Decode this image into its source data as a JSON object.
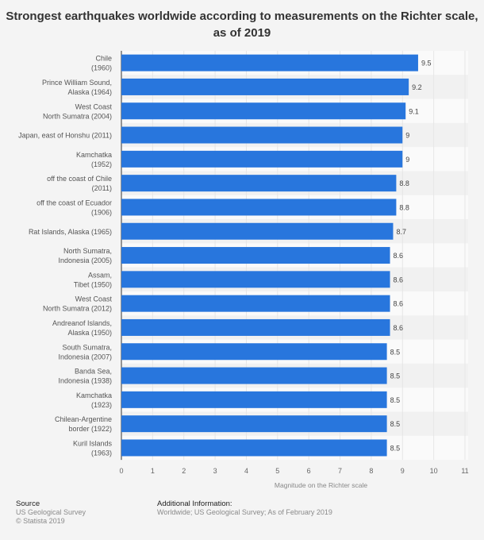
{
  "chart_data": {
    "type": "bar",
    "orientation": "horizontal",
    "title": "Strongest earthquakes worldwide according to measurements on the Richter scale, as of 2019",
    "title_lines": [
      "Strongest earthquakes worldwide according to measurements on the Richter scale,",
      "as of 2019"
    ],
    "categories": [
      [
        "Chile",
        "(1960)"
      ],
      [
        "Prince William Sound,",
        "Alaska (1964)"
      ],
      [
        "West Coast",
        "North Sumatra (2004)"
      ],
      [
        "Japan, east of Honshu (2011)"
      ],
      [
        "Kamchatka",
        "(1952)"
      ],
      [
        "off the coast of Chile",
        "(2011)"
      ],
      [
        "off the coast of Ecuador",
        "(1906)"
      ],
      [
        "Rat Islands, Alaska (1965)"
      ],
      [
        "North Sumatra,",
        "Indonesia (2005)"
      ],
      [
        "Assam,",
        "Tibet (1950)"
      ],
      [
        "West Coast",
        "North Sumatra (2012)"
      ],
      [
        "Andreanof Islands,",
        "Alaska (1950)"
      ],
      [
        "South Sumatra,",
        "Indonesia (2007)"
      ],
      [
        "Banda Sea,",
        "Indonesia (1938)"
      ],
      [
        "Kamchatka",
        "(1923)"
      ],
      [
        "Chilean-Argentine",
        "border (1922)"
      ],
      [
        "Kuril Islands",
        "(1963)"
      ]
    ],
    "values": [
      9.5,
      9.2,
      9.1,
      9,
      9,
      8.8,
      8.8,
      8.7,
      8.6,
      8.6,
      8.6,
      8.6,
      8.5,
      8.5,
      8.5,
      8.5,
      8.5
    ],
    "value_labels": [
      "9.5",
      "9.2",
      "9.1",
      "9",
      "9",
      "8.8",
      "8.8",
      "8.7",
      "8.6",
      "8.6",
      "8.6",
      "8.6",
      "8.5",
      "8.5",
      "8.5",
      "8.5",
      "8.5"
    ],
    "xlabel": "Magnitude on the Richter scale",
    "ylabel": "",
    "xlim": [
      0,
      11
    ],
    "xticks": [
      "0",
      "1",
      "2",
      "3",
      "4",
      "5",
      "6",
      "7",
      "8",
      "9",
      "10",
      "11"
    ],
    "grid": true,
    "bar_color": "#2876dd"
  },
  "footer": {
    "source_heading": "Source",
    "source_text": "US Geological Survey",
    "copyright": "© Statista 2019",
    "info_heading": "Additional Information:",
    "info_text": "Worldwide; US Geological Survey; As of February 2019"
  }
}
